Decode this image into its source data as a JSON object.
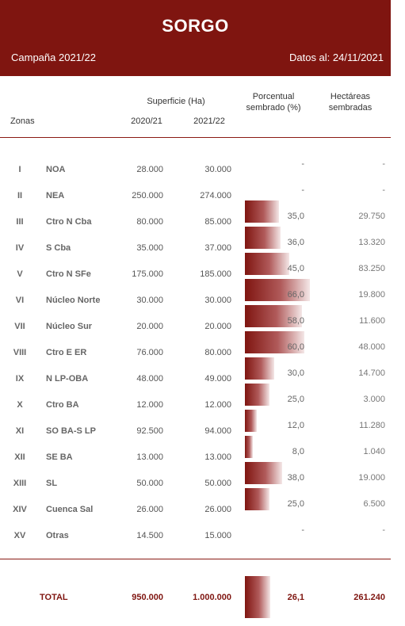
{
  "header": {
    "title": "SORGO",
    "campaign": "Campaña 2021/22",
    "date": "Datos al: 24/11/2021"
  },
  "columns": {
    "zonas": "Zonas",
    "superficie": "Superficie (Ha)",
    "year1": "2020/21",
    "year2": "2021/22",
    "porcentual": "Porcentual sembrado (%)",
    "hectareas": "Hectáreas sembradas"
  },
  "rows": [
    {
      "roman": "I",
      "zone": "NOA",
      "s2020": "28.000",
      "s2021": "30.000",
      "pct": "-",
      "pct_value": 0,
      "has": "-"
    },
    {
      "roman": "II",
      "zone": "NEA",
      "s2020": "250.000",
      "s2021": "274.000",
      "pct": "-",
      "pct_value": 0,
      "has": "-"
    },
    {
      "roman": "III",
      "zone": "Ctro N Cba",
      "s2020": "80.000",
      "s2021": "85.000",
      "pct": "35,0",
      "pct_value": 35.0,
      "has": "29.750"
    },
    {
      "roman": "IV",
      "zone": "S Cba",
      "s2020": "35.000",
      "s2021": "37.000",
      "pct": "36,0",
      "pct_value": 36.0,
      "has": "13.320"
    },
    {
      "roman": "V",
      "zone": "Ctro N SFe",
      "s2020": "175.000",
      "s2021": "185.000",
      "pct": "45,0",
      "pct_value": 45.0,
      "has": "83.250"
    },
    {
      "roman": "VI",
      "zone": "Núcleo Norte",
      "s2020": "30.000",
      "s2021": "30.000",
      "pct": "66,0",
      "pct_value": 66.0,
      "has": "19.800"
    },
    {
      "roman": "VII",
      "zone": "Núcleo Sur",
      "s2020": "20.000",
      "s2021": "20.000",
      "pct": "58,0",
      "pct_value": 58.0,
      "has": "11.600"
    },
    {
      "roman": "VIII",
      "zone": "Ctro E ER",
      "s2020": "76.000",
      "s2021": "80.000",
      "pct": "60,0",
      "pct_value": 60.0,
      "has": "48.000"
    },
    {
      "roman": "IX",
      "zone": "N LP-OBA",
      "s2020": "48.000",
      "s2021": "49.000",
      "pct": "30,0",
      "pct_value": 30.0,
      "has": "14.700"
    },
    {
      "roman": "X",
      "zone": "Ctro BA",
      "s2020": "12.000",
      "s2021": "12.000",
      "pct": "25,0",
      "pct_value": 25.0,
      "has": "3.000"
    },
    {
      "roman": "XI",
      "zone": "SO BA-S LP",
      "s2020": "92.500",
      "s2021": "94.000",
      "pct": "12,0",
      "pct_value": 12.0,
      "has": "11.280"
    },
    {
      "roman": "XII",
      "zone": "SE BA",
      "s2020": "13.000",
      "s2021": "13.000",
      "pct": "8,0",
      "pct_value": 8.0,
      "has": "1.040"
    },
    {
      "roman": "XIII",
      "zone": "SL",
      "s2020": "50.000",
      "s2021": "50.000",
      "pct": "38,0",
      "pct_value": 38.0,
      "has": "19.000"
    },
    {
      "roman": "XIV",
      "zone": "Cuenca Sal",
      "s2020": "26.000",
      "s2021": "26.000",
      "pct": "25,0",
      "pct_value": 25.0,
      "has": "6.500"
    },
    {
      "roman": "XV",
      "zone": "Otras",
      "s2020": "14.500",
      "s2021": "15.000",
      "pct": "-",
      "pct_value": 0,
      "has": "-"
    }
  ],
  "total": {
    "label": "TOTAL",
    "s2020": "950.000",
    "s2021": "1.000.000",
    "pct": "26,1",
    "pct_value": 26.1,
    "has": "261.240"
  },
  "colors": {
    "brand": "#7f1510"
  }
}
